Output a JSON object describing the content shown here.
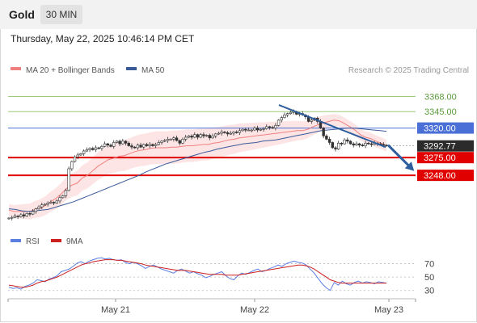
{
  "header": {
    "instrument": "Gold",
    "timeframe": "30 MIN",
    "timestamp": "Thursday, May 22, 2025 10:46:14 PM CET"
  },
  "legend": {
    "ma20": "MA 20 + Bollinger Bands",
    "ma50": "MA 50",
    "credit": "Research © 2025 Trading Central",
    "rsi": "RSI",
    "rsi_ma": "9MA"
  },
  "colors": {
    "ma20": "#f08080",
    "ma50": "#3b5a9a",
    "bollinger_fill": "#fde2e2",
    "support": "#e00000",
    "resistance_green": "#9bcc7a",
    "pivot_blue": "#4a6fd6",
    "arrow": "#2e5e9e",
    "rsi_line": "#5b7fe0",
    "rsi_ma_line": "#cc1f1f"
  },
  "chart_data": [
    {
      "type": "candlestick",
      "ylim": [
        3183,
        3392
      ],
      "x_ticks": [
        "May 21",
        "May 22",
        "May 23"
      ],
      "levels": [
        {
          "value": 3368.0,
          "label": "3368.00",
          "kind": "resistance",
          "color": "#9bcc7a"
        },
        {
          "value": 3345.0,
          "label": "3345.00",
          "kind": "resistance",
          "color": "#9bcc7a"
        },
        {
          "value": 3320.0,
          "label": "3320.00",
          "kind": "pivot",
          "color": "#4a6fd6"
        },
        {
          "value": 3275.0,
          "label": "3275.00",
          "kind": "support",
          "color": "#e00000"
        },
        {
          "value": 3248.0,
          "label": "3248.00",
          "kind": "support",
          "color": "#e00000"
        }
      ],
      "last_price": {
        "value": 3292.77,
        "label": "3292.77"
      },
      "closes": [
        3183,
        3184,
        3186,
        3185,
        3188,
        3186,
        3190,
        3189,
        3193,
        3197,
        3200,
        3203,
        3204,
        3206,
        3207,
        3206,
        3209,
        3214,
        3217,
        3225,
        3258,
        3269,
        3276,
        3279,
        3281,
        3285,
        3287,
        3289,
        3287,
        3290,
        3289,
        3292,
        3296,
        3294,
        3292,
        3298,
        3300,
        3296,
        3300,
        3297,
        3293,
        3291,
        3290,
        3294,
        3291,
        3295,
        3293,
        3295,
        3293,
        3295,
        3298,
        3300,
        3301,
        3303,
        3303,
        3305,
        3301,
        3297,
        3303,
        3306,
        3308,
        3306,
        3310,
        3306,
        3310,
        3308,
        3309,
        3305,
        3308,
        3311,
        3312,
        3314,
        3313,
        3311,
        3312,
        3314,
        3313,
        3316,
        3318,
        3317,
        3317,
        3317,
        3320,
        3317,
        3318,
        3319,
        3322,
        3321,
        3320,
        3324,
        3332,
        3336,
        3340,
        3342,
        3344,
        3345,
        3341,
        3342,
        3340,
        3337,
        3330,
        3332,
        3335,
        3330,
        3320,
        3308,
        3303,
        3298,
        3290,
        3288,
        3297,
        3296,
        3302,
        3300,
        3296,
        3294,
        3296,
        3294,
        3293,
        3297,
        3296,
        3295,
        3297,
        3296,
        3295,
        3294,
        3293
      ],
      "ma20": [
        3195,
        3193,
        3193,
        3193,
        3193,
        3196,
        3198,
        3202,
        3208,
        3213,
        3220,
        3228,
        3233,
        3236,
        3244,
        3248,
        3255,
        3262,
        3267,
        3272,
        3274,
        3277,
        3278,
        3281,
        3284,
        3286,
        3287,
        3289,
        3290,
        3290,
        3290,
        3291,
        3291,
        3292,
        3293,
        3293,
        3294,
        3295,
        3295,
        3297,
        3298,
        3300,
        3302,
        3303,
        3305,
        3306,
        3307,
        3308,
        3309,
        3310,
        3311,
        3312,
        3313,
        3314,
        3315,
        3316,
        3316,
        3318,
        3322,
        3325,
        3328,
        3330,
        3332,
        3331,
        3327,
        3322,
        3317,
        3310,
        3306,
        3304,
        3300,
        3297,
        3293
      ],
      "ma50": [
        3197,
        3196,
        3194,
        3193,
        3194,
        3195,
        3196,
        3199,
        3202,
        3205,
        3208,
        3212,
        3216,
        3220,
        3224,
        3228,
        3232,
        3236,
        3240,
        3244,
        3248,
        3253,
        3257,
        3261,
        3265,
        3268,
        3271,
        3274,
        3277,
        3280,
        3283,
        3285,
        3288,
        3290,
        3292,
        3294,
        3296,
        3297,
        3298,
        3300,
        3301,
        3302,
        3304,
        3306,
        3308,
        3310,
        3312,
        3314,
        3316,
        3317,
        3318,
        3319,
        3320,
        3320,
        3319,
        3318,
        3317,
        3316,
        3315
      ],
      "trendline": [
        [
          3355,
          3291
        ]
      ],
      "arrow_target": 3250
    },
    {
      "type": "line",
      "name": "RSI",
      "ylim": [
        20,
        90
      ],
      "y_ticks": [
        70,
        50,
        30
      ],
      "series": [
        {
          "name": "RSI",
          "values": [
            35,
            33,
            34,
            32,
            36,
            38,
            41,
            46,
            45,
            43,
            47,
            49,
            52,
            58,
            60,
            62,
            66,
            71,
            73,
            70,
            74,
            76,
            78,
            79,
            77,
            78,
            76,
            75,
            76,
            72,
            70,
            72,
            70,
            67,
            63,
            66,
            68,
            65,
            62,
            60,
            58,
            56,
            60,
            62,
            59,
            56,
            58,
            55,
            53,
            49,
            51,
            54,
            56,
            58,
            52,
            48,
            46,
            52,
            56,
            54,
            57,
            60,
            62,
            58,
            60,
            63,
            65,
            68,
            66,
            70,
            72,
            74,
            72,
            71,
            68,
            62,
            56,
            48,
            40,
            34,
            30,
            42,
            38,
            44,
            40,
            38,
            42,
            44,
            41,
            43,
            42,
            40,
            43,
            42,
            41
          ]
        },
        {
          "name": "9MA",
          "values": [
            38,
            37,
            36,
            35,
            35,
            36,
            38,
            41,
            43,
            44,
            46,
            48,
            50,
            53,
            56,
            59,
            62,
            65,
            68,
            70,
            71,
            73,
            74,
            75,
            76,
            76,
            76,
            75,
            75,
            74,
            73,
            72,
            71,
            70,
            68,
            67,
            66,
            65,
            64,
            63,
            62,
            61,
            60,
            60,
            60,
            59,
            58,
            57,
            56,
            55,
            54,
            54,
            54,
            54,
            53,
            53,
            53,
            53,
            54,
            55,
            56,
            57,
            58,
            59,
            60,
            61,
            62,
            63,
            64,
            65,
            66,
            67,
            68,
            68,
            67,
            65,
            62,
            58,
            54,
            50,
            46,
            44,
            42,
            41,
            41,
            41,
            41,
            41,
            41,
            41,
            41,
            41,
            41,
            41,
            41
          ]
        }
      ]
    }
  ]
}
